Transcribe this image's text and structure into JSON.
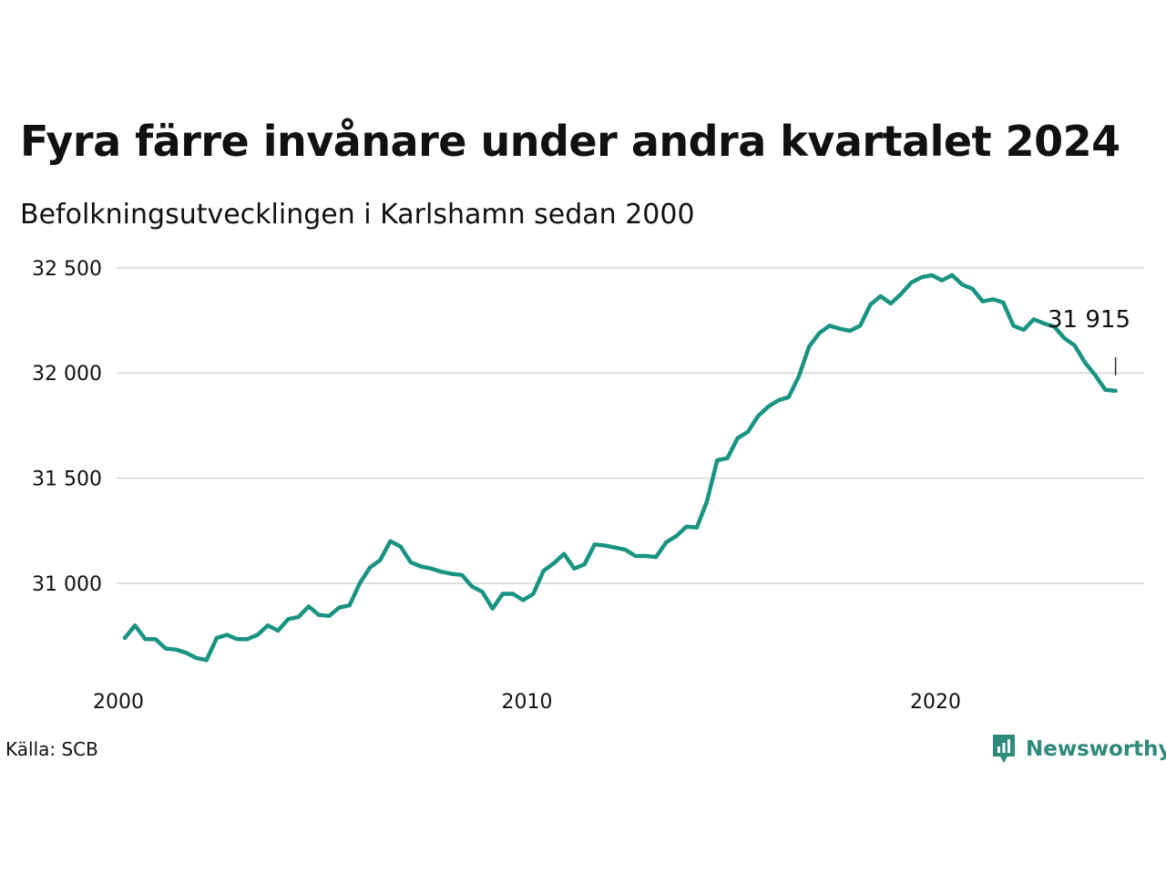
{
  "title": "Fyra färre invånare under andra kvartalet 2024",
  "subtitle": "Befolkningsutvecklingen i Karlshamn sedan 2000",
  "source": "Källa: SCB",
  "brand": "Newsworthy",
  "colors": {
    "line": "#1a9482",
    "grid": "#dddddd",
    "text": "#111111",
    "brand": "#2e8a7a"
  },
  "chart_data": {
    "type": "line",
    "title": "Fyra färre invånare under andra kvartalet 2024",
    "subtitle": "Befolkningsutvecklingen i Karlshamn sedan 2000",
    "xlabel": "",
    "ylabel": "",
    "x_ticks": [
      {
        "value": 2000,
        "label": "2000"
      },
      {
        "value": 2010,
        "label": "2010"
      },
      {
        "value": 2020,
        "label": "2020"
      }
    ],
    "y_ticks": [
      {
        "value": 31000,
        "label": "31 000"
      },
      {
        "value": 31500,
        "label": "31 500"
      },
      {
        "value": 32000,
        "label": "32 000"
      },
      {
        "value": 32500,
        "label": "32 500"
      }
    ],
    "ylim": [
      30600,
      32580
    ],
    "xlim": [
      2000,
      2024.5
    ],
    "grid": true,
    "annotation": {
      "x": 2024.25,
      "y": 31915,
      "label": "31 915"
    },
    "series": [
      {
        "x": [
          2000.0,
          2000.25,
          2000.5,
          2000.75,
          2001.0,
          2001.25,
          2001.5,
          2001.75,
          2002.0,
          2002.25,
          2002.5,
          2002.75,
          2003.0,
          2003.25,
          2003.5,
          2003.75,
          2004.0,
          2004.25,
          2004.5,
          2004.75,
          2005.0,
          2005.25,
          2005.5,
          2005.75,
          2006.0,
          2006.25,
          2006.5,
          2006.75,
          2007.0,
          2007.25,
          2007.5,
          2007.75,
          2008.0,
          2008.25,
          2008.5,
          2008.75,
          2009.0,
          2009.25,
          2009.5,
          2009.75,
          2010.0,
          2010.25,
          2010.5,
          2010.75,
          2011.0,
          2011.25,
          2011.5,
          2011.75,
          2012.0,
          2012.25,
          2012.5,
          2012.75,
          2013.0,
          2013.25,
          2013.5,
          2013.75,
          2014.0,
          2014.25,
          2014.5,
          2014.75,
          2015.0,
          2015.25,
          2015.5,
          2015.75,
          2016.0,
          2016.25,
          2016.5,
          2016.75,
          2017.0,
          2017.25,
          2017.5,
          2017.75,
          2018.0,
          2018.25,
          2018.5,
          2018.75,
          2019.0,
          2019.25,
          2019.5,
          2019.75,
          2020.0,
          2020.25,
          2020.5,
          2020.75,
          2021.0,
          2021.25,
          2021.5,
          2021.75,
          2022.0,
          2022.25,
          2022.5,
          2022.75,
          2023.0,
          2023.25,
          2023.5,
          2023.75,
          2024.0,
          2024.25
        ],
        "values": [
          30740,
          30800,
          30735,
          30735,
          30690,
          30685,
          30670,
          30645,
          30635,
          30740,
          30755,
          30735,
          30735,
          30755,
          30800,
          30775,
          30830,
          30840,
          30890,
          30850,
          30845,
          30885,
          30895,
          31000,
          31075,
          31110,
          31200,
          31175,
          31100,
          31080,
          31070,
          31055,
          31045,
          31040,
          30985,
          30960,
          30880,
          30950,
          30950,
          30920,
          30950,
          31060,
          31095,
          31140,
          31070,
          31090,
          31185,
          31180,
          31170,
          31160,
          31130,
          31130,
          31125,
          31195,
          31225,
          31270,
          31265,
          31390,
          31585,
          31595,
          31690,
          31720,
          31795,
          31840,
          31870,
          31885,
          31985,
          32125,
          32190,
          32225,
          32210,
          32200,
          32225,
          32325,
          32365,
          32330,
          32375,
          32430,
          32455,
          32465,
          32440,
          32465,
          32420,
          32400,
          32340,
          32350,
          32335,
          32225,
          32205,
          32255,
          32235,
          32220,
          32165,
          32130,
          32050,
          31990,
          31920,
          31915
        ]
      }
    ]
  }
}
